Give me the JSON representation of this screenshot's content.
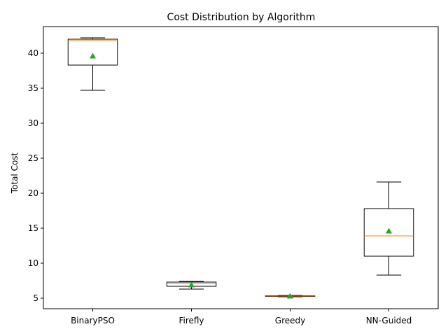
{
  "chart_data": {
    "type": "box",
    "title": "Cost Distribution by Algorithm",
    "xlabel": "",
    "ylabel": "Total Cost",
    "ylim": [
      3.5,
      43.8
    ],
    "yticks": [
      5,
      10,
      15,
      20,
      25,
      30,
      35,
      40
    ],
    "categories": [
      "BinaryPSO",
      "Firefly",
      "Greedy",
      "NN-Guided"
    ],
    "boxes": [
      {
        "whislo": 34.7,
        "q1": 38.3,
        "med": 41.8,
        "q3": 42.0,
        "whishi": 42.2,
        "mean": 39.6
      },
      {
        "whislo": 6.3,
        "q1": 6.7,
        "med": 7.1,
        "q3": 7.3,
        "whishi": 7.4,
        "mean": 6.9
      },
      {
        "whislo": 5.2,
        "q1": 5.25,
        "med": 5.3,
        "q3": 5.35,
        "whishi": 5.4,
        "mean": 5.3
      },
      {
        "whislo": 8.3,
        "q1": 11.0,
        "med": 13.9,
        "q3": 17.8,
        "whishi": 21.6,
        "mean": 14.6
      }
    ],
    "showmeans": true,
    "grid": false,
    "colors": {
      "box": "#000000",
      "median": "#ff7f0e",
      "mean": "#2ca02c"
    }
  }
}
